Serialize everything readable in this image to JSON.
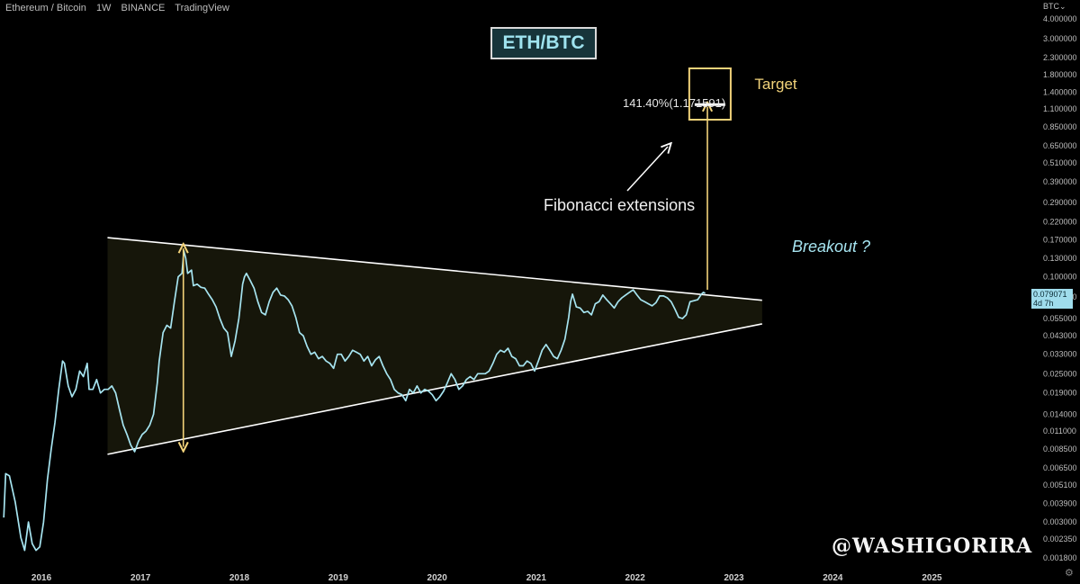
{
  "header": {
    "symbol": "Ethereum / Bitcoin",
    "interval": "1W",
    "exchange": "BINANCE",
    "platform": "TradingView"
  },
  "title": "ETH/BTC",
  "annotations": {
    "target": "Target",
    "fib_level": "141.40%(1.171591)",
    "fib_text": "Fibonacci extensions",
    "breakout": "Breakout ?",
    "watermark": "@WASHIGORIRA"
  },
  "price_axis": {
    "unit": "BTC⌄",
    "current_value": "0.079071",
    "current_countdown": "4d 7h"
  },
  "colors": {
    "line": "#a6e4f0",
    "triangle_fill": "#16160a",
    "triangle_edge": "#ffffff",
    "target": "#f2d37a",
    "title_bg": "#17343a"
  },
  "chart_data": {
    "type": "line",
    "yscale": "log",
    "ylim": [
      0.0015,
      4.6
    ],
    "xlim": [
      "2015-08-01",
      "2025-12-31"
    ],
    "y_ticks": [
      4.0,
      3.0,
      2.3,
      1.8,
      1.4,
      1.1,
      0.85,
      0.65,
      0.51,
      0.39,
      0.29,
      0.22,
      0.17,
      0.13,
      0.1,
      0.075,
      0.055,
      0.043,
      0.033,
      0.025,
      0.019,
      0.014,
      0.011,
      0.0085,
      0.0065,
      0.0051,
      0.0039,
      0.003,
      0.00235,
      0.0018
    ],
    "y_tick_labels": [
      "4.000000",
      "3.000000",
      "2.300000",
      "1.800000",
      "1.400000",
      "1.100000",
      "0.850000",
      "0.650000",
      "0.510000",
      "0.390000",
      "0.290000",
      "0.220000",
      "0.170000",
      "0.130000",
      "0.100000",
      "0.075000",
      "0.055000",
      "0.043000",
      "0.033000",
      "0.025000",
      "0.019000",
      "0.014000",
      "0.011000",
      "0.008500",
      "0.006500",
      "0.005100",
      "0.003900",
      "0.003000",
      "0.002350",
      "0.001800"
    ],
    "x_ticks": [
      "2016-01-01",
      "2017-01-01",
      "2018-01-01",
      "2019-01-01",
      "2020-01-01",
      "2021-01-01",
      "2022-01-01",
      "2023-01-01",
      "2024-01-01",
      "2025-01-01"
    ],
    "x_tick_labels": [
      "2016",
      "2017",
      "2018",
      "2019",
      "2020",
      "2021",
      "2022",
      "2023",
      "2024",
      "2025"
    ],
    "series": [
      {
        "name": "",
        "points": [
          [
            "2015-08-15",
            0.0032
          ],
          [
            "2015-08-22",
            0.006
          ],
          [
            "2015-09-05",
            0.0058
          ],
          [
            "2015-09-26",
            0.004
          ],
          [
            "2015-10-17",
            0.0024
          ],
          [
            "2015-10-31",
            0.002
          ],
          [
            "2015-11-14",
            0.003
          ],
          [
            "2015-11-28",
            0.0022
          ],
          [
            "2015-12-12",
            0.002
          ],
          [
            "2015-12-26",
            0.0021
          ],
          [
            "2016-01-09",
            0.003
          ],
          [
            "2016-01-23",
            0.0055
          ],
          [
            "2016-02-06",
            0.0085
          ],
          [
            "2016-02-20",
            0.0125
          ],
          [
            "2016-03-05",
            0.02
          ],
          [
            "2016-03-19",
            0.03
          ],
          [
            "2016-03-26",
            0.029
          ],
          [
            "2016-04-09",
            0.021
          ],
          [
            "2016-04-23",
            0.018
          ],
          [
            "2016-05-07",
            0.02
          ],
          [
            "2016-05-21",
            0.026
          ],
          [
            "2016-06-04",
            0.024
          ],
          [
            "2016-06-18",
            0.029
          ],
          [
            "2016-06-25",
            0.02
          ],
          [
            "2016-07-09",
            0.02
          ],
          [
            "2016-07-23",
            0.023
          ],
          [
            "2016-08-06",
            0.019
          ],
          [
            "2016-08-20",
            0.02
          ],
          [
            "2016-09-03",
            0.02
          ],
          [
            "2016-09-17",
            0.021
          ],
          [
            "2016-10-01",
            0.019
          ],
          [
            "2016-10-15",
            0.015
          ],
          [
            "2016-10-29",
            0.012
          ],
          [
            "2016-11-12",
            0.0105
          ],
          [
            "2016-11-26",
            0.009
          ],
          [
            "2016-12-10",
            0.0082
          ],
          [
            "2016-12-24",
            0.0095
          ],
          [
            "2017-01-07",
            0.0105
          ],
          [
            "2017-01-21",
            0.011
          ],
          [
            "2017-02-04",
            0.012
          ],
          [
            "2017-02-18",
            0.014
          ],
          [
            "2017-03-04",
            0.022
          ],
          [
            "2017-03-11",
            0.03
          ],
          [
            "2017-03-25",
            0.045
          ],
          [
            "2017-04-08",
            0.05
          ],
          [
            "2017-04-22",
            0.048
          ],
          [
            "2017-05-06",
            0.07
          ],
          [
            "2017-05-20",
            0.1
          ],
          [
            "2017-06-03",
            0.105
          ],
          [
            "2017-06-10",
            0.145
          ],
          [
            "2017-06-17",
            0.13
          ],
          [
            "2017-06-24",
            0.105
          ],
          [
            "2017-07-08",
            0.11
          ],
          [
            "2017-07-15",
            0.088
          ],
          [
            "2017-07-29",
            0.09
          ],
          [
            "2017-08-12",
            0.086
          ],
          [
            "2017-08-26",
            0.085
          ],
          [
            "2017-09-09",
            0.078
          ],
          [
            "2017-09-23",
            0.072
          ],
          [
            "2017-10-07",
            0.065
          ],
          [
            "2017-10-21",
            0.055
          ],
          [
            "2017-11-04",
            0.048
          ],
          [
            "2017-11-18",
            0.045
          ],
          [
            "2017-12-02",
            0.032
          ],
          [
            "2017-12-16",
            0.04
          ],
          [
            "2017-12-30",
            0.055
          ],
          [
            "2018-01-06",
            0.07
          ],
          [
            "2018-01-13",
            0.09
          ],
          [
            "2018-01-20",
            0.1
          ],
          [
            "2018-01-27",
            0.105
          ],
          [
            "2018-02-10",
            0.095
          ],
          [
            "2018-02-24",
            0.085
          ],
          [
            "2018-03-10",
            0.07
          ],
          [
            "2018-03-24",
            0.06
          ],
          [
            "2018-04-07",
            0.058
          ],
          [
            "2018-04-21",
            0.07
          ],
          [
            "2018-05-05",
            0.08
          ],
          [
            "2018-05-19",
            0.085
          ],
          [
            "2018-06-02",
            0.077
          ],
          [
            "2018-06-16",
            0.076
          ],
          [
            "2018-06-30",
            0.072
          ],
          [
            "2018-07-14",
            0.066
          ],
          [
            "2018-07-28",
            0.056
          ],
          [
            "2018-08-11",
            0.045
          ],
          [
            "2018-08-25",
            0.043
          ],
          [
            "2018-09-08",
            0.037
          ],
          [
            "2018-09-22",
            0.033
          ],
          [
            "2018-10-06",
            0.034
          ],
          [
            "2018-10-20",
            0.031
          ],
          [
            "2018-11-03",
            0.032
          ],
          [
            "2018-11-17",
            0.03
          ],
          [
            "2018-12-01",
            0.029
          ],
          [
            "2018-12-15",
            0.027
          ],
          [
            "2018-12-29",
            0.033
          ],
          [
            "2019-01-12",
            0.033
          ],
          [
            "2019-01-26",
            0.03
          ],
          [
            "2019-02-09",
            0.032
          ],
          [
            "2019-02-23",
            0.035
          ],
          [
            "2019-03-09",
            0.034
          ],
          [
            "2019-03-23",
            0.033
          ],
          [
            "2019-04-06",
            0.03
          ],
          [
            "2019-04-20",
            0.032
          ],
          [
            "2019-05-04",
            0.028
          ],
          [
            "2019-05-18",
            0.0305
          ],
          [
            "2019-06-01",
            0.032
          ],
          [
            "2019-06-15",
            0.028
          ],
          [
            "2019-06-29",
            0.025
          ],
          [
            "2019-07-13",
            0.023
          ],
          [
            "2019-07-27",
            0.02
          ],
          [
            "2019-08-10",
            0.019
          ],
          [
            "2019-08-24",
            0.0185
          ],
          [
            "2019-09-07",
            0.017
          ],
          [
            "2019-09-21",
            0.02
          ],
          [
            "2019-10-05",
            0.019
          ],
          [
            "2019-10-19",
            0.021
          ],
          [
            "2019-11-02",
            0.019
          ],
          [
            "2019-11-16",
            0.02
          ],
          [
            "2019-11-30",
            0.0195
          ],
          [
            "2019-12-14",
            0.0185
          ],
          [
            "2019-12-28",
            0.017
          ],
          [
            "2020-01-11",
            0.018
          ],
          [
            "2020-01-25",
            0.0195
          ],
          [
            "2020-02-08",
            0.022
          ],
          [
            "2020-02-22",
            0.025
          ],
          [
            "2020-03-07",
            0.023
          ],
          [
            "2020-03-21",
            0.02
          ],
          [
            "2020-04-04",
            0.021
          ],
          [
            "2020-04-18",
            0.023
          ],
          [
            "2020-05-02",
            0.024
          ],
          [
            "2020-05-16",
            0.023
          ],
          [
            "2020-05-30",
            0.025
          ],
          [
            "2020-06-13",
            0.025
          ],
          [
            "2020-06-27",
            0.025
          ],
          [
            "2020-07-11",
            0.026
          ],
          [
            "2020-07-25",
            0.029
          ],
          [
            "2020-08-08",
            0.033
          ],
          [
            "2020-08-22",
            0.035
          ],
          [
            "2020-09-05",
            0.034
          ],
          [
            "2020-09-19",
            0.036
          ],
          [
            "2020-10-03",
            0.032
          ],
          [
            "2020-10-17",
            0.031
          ],
          [
            "2020-10-31",
            0.028
          ],
          [
            "2020-11-14",
            0.028
          ],
          [
            "2020-11-28",
            0.03
          ],
          [
            "2020-12-12",
            0.029
          ],
          [
            "2020-12-26",
            0.026
          ],
          [
            "2021-01-09",
            0.03
          ],
          [
            "2021-01-23",
            0.035
          ],
          [
            "2021-02-06",
            0.038
          ],
          [
            "2021-02-20",
            0.035
          ],
          [
            "2021-03-06",
            0.032
          ],
          [
            "2021-03-20",
            0.031
          ],
          [
            "2021-04-03",
            0.035
          ],
          [
            "2021-04-17",
            0.041
          ],
          [
            "2021-05-01",
            0.056
          ],
          [
            "2021-05-08",
            0.07
          ],
          [
            "2021-05-15",
            0.078
          ],
          [
            "2021-05-29",
            0.065
          ],
          [
            "2021-06-12",
            0.064
          ],
          [
            "2021-06-26",
            0.06
          ],
          [
            "2021-07-10",
            0.061
          ],
          [
            "2021-07-24",
            0.058
          ],
          [
            "2021-08-07",
            0.068
          ],
          [
            "2021-08-21",
            0.07
          ],
          [
            "2021-09-04",
            0.077
          ],
          [
            "2021-09-18",
            0.072
          ],
          [
            "2021-10-02",
            0.068
          ],
          [
            "2021-10-16",
            0.064
          ],
          [
            "2021-10-30",
            0.07
          ],
          [
            "2021-11-13",
            0.074
          ],
          [
            "2021-11-27",
            0.077
          ],
          [
            "2021-12-11",
            0.08
          ],
          [
            "2021-12-25",
            0.083
          ],
          [
            "2022-01-08",
            0.077
          ],
          [
            "2022-01-22",
            0.072
          ],
          [
            "2022-02-05",
            0.07
          ],
          [
            "2022-02-19",
            0.068
          ],
          [
            "2022-03-05",
            0.066
          ],
          [
            "2022-03-19",
            0.069
          ],
          [
            "2022-04-02",
            0.076
          ],
          [
            "2022-04-16",
            0.076
          ],
          [
            "2022-04-30",
            0.074
          ],
          [
            "2022-05-14",
            0.07
          ],
          [
            "2022-05-28",
            0.063
          ],
          [
            "2022-06-11",
            0.056
          ],
          [
            "2022-06-25",
            0.055
          ],
          [
            "2022-07-09",
            0.058
          ],
          [
            "2022-07-23",
            0.07
          ],
          [
            "2022-08-06",
            0.071
          ],
          [
            "2022-08-20",
            0.072
          ],
          [
            "2022-09-03",
            0.078
          ],
          [
            "2022-09-10",
            0.08
          ],
          [
            "2022-09-17",
            0.079
          ]
        ]
      }
    ],
    "triangle": {
      "upper": [
        [
          "2016-09-01",
          0.175
        ],
        [
          "2023-04-15",
          0.0715
        ]
      ],
      "lower": [
        [
          "2016-09-01",
          0.0079
        ],
        [
          "2023-04-15",
          0.051
        ]
      ]
    },
    "measure_arrow": {
      "date": "2017-06-08",
      "from": 0.0088,
      "to": 0.15
    },
    "target_arrow": {
      "date": "2022-09-25",
      "from": 0.083,
      "to": 1.1716
    },
    "target_level": {
      "value": 1.171591,
      "from": "2022-07-20",
      "to": "2022-12-20"
    }
  }
}
